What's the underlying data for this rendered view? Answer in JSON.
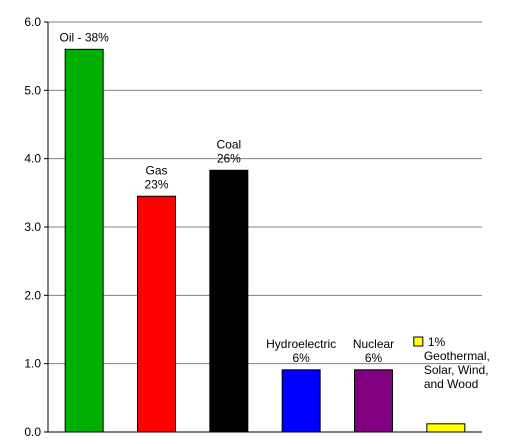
{
  "chart_data": {
    "type": "bar",
    "categories": [
      "Oil",
      "Gas",
      "Coal",
      "Hydroelectric",
      "Nuclear",
      "Geothermal, Solar, Wind, and Wood"
    ],
    "values": [
      5.6,
      3.45,
      3.83,
      0.91,
      0.91,
      0.12
    ],
    "colors": [
      "#00b000",
      "#ff0000",
      "#000000",
      "#0000ff",
      "#800080",
      "#ffff00"
    ],
    "bar_labels": [
      [
        "Oil - 38%"
      ],
      [
        "Gas",
        "23%"
      ],
      [
        "Coal",
        "26%"
      ],
      [
        "Hydroelectric",
        "6%"
      ],
      [
        "Nuclear",
        "6%"
      ],
      [
        "1%",
        "Geothermal,",
        "Solar, Wind,",
        "and Wood"
      ]
    ],
    "y_ticks": [
      "0.0",
      "1.0",
      "2.0",
      "3.0",
      "4.0",
      "5.0",
      "6.0"
    ],
    "ylim": [
      0,
      6
    ],
    "grid": true,
    "title": "",
    "xlabel": "",
    "ylabel": ""
  }
}
